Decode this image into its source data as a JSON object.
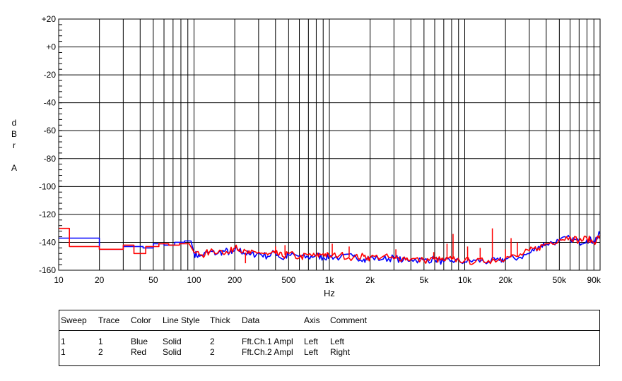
{
  "chart_data": {
    "type": "line",
    "xlabel": "Hz",
    "ylabel_chars": [
      "d",
      "B",
      "r",
      "A"
    ],
    "x_scale": "log",
    "xlim": [
      10,
      100000
    ],
    "ylim": [
      -160,
      20
    ],
    "grid": true,
    "x_ticks": [
      10,
      20,
      50,
      100,
      200,
      500,
      1000,
      2000,
      5000,
      10000,
      20000,
      50000,
      90000
    ],
    "x_tick_labels": [
      "10",
      "20",
      "50",
      "100",
      "200",
      "500",
      "1k",
      "2k",
      "5k",
      "10k",
      "20k",
      "50k",
      "90k"
    ],
    "y_ticks": [
      20,
      0,
      -20,
      -40,
      -60,
      -80,
      -100,
      -120,
      -140,
      -160
    ],
    "y_tick_labels": [
      "+20",
      "+0",
      "-20",
      "-40",
      "-60",
      "-80",
      "-100",
      "-120",
      "-140",
      "-160"
    ],
    "series": [
      {
        "color": "#0000ff",
        "points": [
          [
            10,
            -137
          ],
          [
            20,
            -137
          ],
          [
            20,
            -145
          ],
          [
            30,
            -145
          ],
          [
            30,
            -143
          ],
          [
            42,
            -143
          ],
          [
            42,
            -144
          ],
          [
            50,
            -144
          ],
          [
            50,
            -141
          ],
          [
            60,
            -141
          ],
          [
            60,
            -142
          ],
          [
            72,
            -142
          ],
          [
            72,
            -140
          ],
          [
            85,
            -140
          ],
          [
            85,
            -139
          ],
          [
            95,
            -139
          ],
          [
            100,
            -148
          ],
          [
            110,
            -150
          ],
          [
            130,
            -147
          ],
          [
            150,
            -148
          ],
          [
            170,
            -146
          ],
          [
            190,
            -148
          ],
          [
            210,
            -145
          ],
          [
            230,
            -147
          ],
          [
            260,
            -149
          ],
          [
            300,
            -148
          ],
          [
            350,
            -150
          ],
          [
            400,
            -147
          ],
          [
            450,
            -152
          ],
          [
            500,
            -149
          ],
          [
            600,
            -150
          ],
          [
            700,
            -151
          ],
          [
            800,
            -149
          ],
          [
            900,
            -151
          ],
          [
            1000,
            -150
          ],
          [
            1200,
            -151
          ],
          [
            1500,
            -150
          ],
          [
            1800,
            -152
          ],
          [
            2000,
            -151
          ],
          [
            2500,
            -152
          ],
          [
            3000,
            -151
          ],
          [
            3500,
            -153
          ],
          [
            4000,
            -152
          ],
          [
            5000,
            -153
          ],
          [
            6000,
            -152
          ],
          [
            7000,
            -154
          ],
          [
            8000,
            -153
          ],
          [
            10000,
            -154
          ],
          [
            12000,
            -153
          ],
          [
            15000,
            -154
          ],
          [
            18000,
            -153
          ],
          [
            20000,
            -152
          ],
          [
            25000,
            -151
          ],
          [
            30000,
            -148
          ],
          [
            35000,
            -143
          ],
          [
            40000,
            -141
          ],
          [
            50000,
            -139
          ],
          [
            60000,
            -137
          ],
          [
            70000,
            -140
          ],
          [
            80000,
            -138
          ],
          [
            90000,
            -139
          ],
          [
            100000,
            -134
          ]
        ]
      },
      {
        "color": "#ff0000",
        "points": [
          [
            10,
            -130
          ],
          [
            12,
            -130
          ],
          [
            12,
            -143
          ],
          [
            20,
            -143
          ],
          [
            20,
            -145
          ],
          [
            30,
            -145
          ],
          [
            30,
            -142
          ],
          [
            36,
            -142
          ],
          [
            36,
            -148
          ],
          [
            44,
            -148
          ],
          [
            44,
            -143
          ],
          [
            55,
            -143
          ],
          [
            55,
            -141
          ],
          [
            65,
            -141
          ],
          [
            65,
            -142
          ],
          [
            78,
            -142
          ],
          [
            78,
            -141
          ],
          [
            92,
            -141
          ],
          [
            100,
            -147
          ],
          [
            115,
            -149
          ],
          [
            130,
            -147
          ],
          [
            160,
            -146
          ],
          [
            180,
            -148
          ],
          [
            205,
            -142
          ],
          [
            230,
            -147
          ],
          [
            260,
            -148
          ],
          [
            300,
            -147
          ],
          [
            350,
            -149
          ],
          [
            400,
            -148
          ],
          [
            450,
            -150
          ],
          [
            500,
            -148
          ],
          [
            600,
            -151
          ],
          [
            700,
            -149
          ],
          [
            800,
            -150
          ],
          [
            900,
            -148
          ],
          [
            1000,
            -150
          ],
          [
            1200,
            -149
          ],
          [
            1500,
            -151
          ],
          [
            1800,
            -150
          ],
          [
            2000,
            -151
          ],
          [
            2500,
            -150
          ],
          [
            3000,
            -152
          ],
          [
            3500,
            -151
          ],
          [
            4000,
            -152
          ],
          [
            5000,
            -153
          ],
          [
            6000,
            -152
          ],
          [
            7000,
            -153
          ],
          [
            8000,
            -152
          ],
          [
            10000,
            -153
          ],
          [
            12000,
            -154
          ],
          [
            15000,
            -153
          ],
          [
            18000,
            -152
          ],
          [
            20000,
            -151
          ],
          [
            25000,
            -150
          ],
          [
            30000,
            -146
          ],
          [
            35000,
            -144
          ],
          [
            40000,
            -141
          ],
          [
            50000,
            -138
          ],
          [
            60000,
            -136
          ],
          [
            70000,
            -139
          ],
          [
            80000,
            -137
          ],
          [
            90000,
            -140
          ],
          [
            100000,
            -135
          ]
        ]
      }
    ],
    "spikes": [
      {
        "x": 240,
        "y": -155
      },
      {
        "x": 400,
        "y": -143
      },
      {
        "x": 470,
        "y": -142
      },
      {
        "x": 1050,
        "y": -141
      },
      {
        "x": 1400,
        "y": -143
      },
      {
        "x": 3100,
        "y": -145
      },
      {
        "x": 5900,
        "y": -147
      },
      {
        "x": 7400,
        "y": -141
      },
      {
        "x": 8200,
        "y": -134
      },
      {
        "x": 10500,
        "y": -143
      },
      {
        "x": 13000,
        "y": -144
      },
      {
        "x": 16000,
        "y": -130
      },
      {
        "x": 20000,
        "y": -145
      },
      {
        "x": 22000,
        "y": -137
      },
      {
        "x": 24500,
        "y": -140
      }
    ]
  },
  "legend_table": {
    "headers": [
      "Sweep",
      "Trace",
      "Color",
      "Line Style",
      "Thick",
      "Data",
      "Axis",
      "Comment"
    ],
    "rows": [
      [
        "1",
        "1",
        "Blue",
        "Solid",
        "2",
        "Fft.Ch.1 Ampl",
        "Left",
        "Left"
      ],
      [
        "1",
        "2",
        "Red",
        "Solid",
        "2",
        "Fft.Ch.2 Ampl",
        "Left",
        "Right"
      ]
    ]
  }
}
